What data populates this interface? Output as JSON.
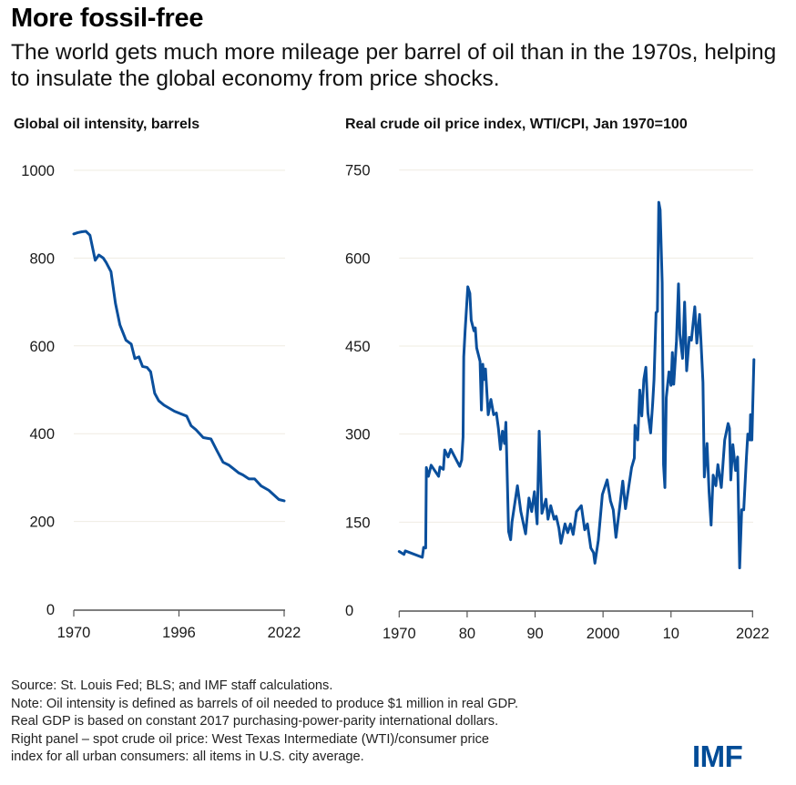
{
  "header": {
    "title": "More fossil-free",
    "subtitle": "The world gets much more mileage per barrel of oil than in the 1970s, helping to insulate the global economy from price shocks."
  },
  "colors": {
    "line": "#0a4f9c",
    "grid": "#efece2",
    "axis": "#555555",
    "logo": "#004c97"
  },
  "chart_data": [
    {
      "type": "line",
      "title": "Global oil intensity, barrels",
      "xlabel": "",
      "ylabel": "",
      "xlim": [
        1970,
        2022
      ],
      "ylim": [
        0,
        1000
      ],
      "x_ticks": [
        1970,
        1996,
        2022
      ],
      "x_tick_labels": [
        "1970",
        "1996",
        "2022"
      ],
      "y_ticks": [
        0,
        200,
        400,
        600,
        800,
        1000
      ],
      "y_tick_labels": [
        "0",
        "200",
        "400",
        "600",
        "800",
        "1000"
      ],
      "grid": true,
      "legend": "none",
      "series": [
        {
          "name": "Global oil intensity",
          "x": [
            1970,
            1971,
            1972,
            1973,
            1974,
            1975.3,
            1976.2,
            1977.3,
            1978,
            1979.2,
            1980.3,
            1981.4,
            1982.9,
            1984.2,
            1985.1,
            1986.1,
            1987,
            1988.1,
            1989,
            1990,
            1991,
            1992.3,
            1994.9,
            1997.9,
            1999,
            2000.2,
            2002,
            2003.9,
            2005.4,
            2006.9,
            2008.4,
            2010.7,
            2011.8,
            2013.3,
            2014.7,
            2016.3,
            2018.2,
            2020.7,
            2022
          ],
          "values": [
            855,
            858,
            860,
            861,
            852,
            795,
            807,
            800,
            790,
            769,
            697,
            648,
            613,
            604,
            571,
            575,
            553,
            551,
            541,
            492,
            475,
            465,
            451,
            440,
            418,
            409,
            391,
            388,
            361,
            335,
            328,
            311,
            306,
            297,
            297,
            281,
            271,
            250,
            247
          ]
        }
      ]
    },
    {
      "type": "line",
      "title": "Real crude oil price index, WTI/CPI, Jan 1970=100",
      "xlabel": "",
      "ylabel": "",
      "xlim": [
        1970,
        2022.2
      ],
      "ylim": [
        0,
        750
      ],
      "x_ticks": [
        1970,
        1980,
        1990,
        2000,
        2010,
        2022
      ],
      "x_tick_labels": [
        "1970",
        "80",
        "90",
        "2000",
        "10",
        "2022"
      ],
      "y_ticks": [
        0,
        150,
        300,
        450,
        600,
        750
      ],
      "y_tick_labels": [
        "0",
        "150",
        "300",
        "450",
        "600",
        "750"
      ],
      "grid": true,
      "legend": "none",
      "series": [
        {
          "name": "Real crude oil price index",
          "x": [
            1970.0,
            1970.7,
            1970.9,
            1973.4,
            1973.6,
            1973.9,
            1974.0,
            1974.3,
            1974.7,
            1975.8,
            1976.0,
            1976.5,
            1976.7,
            1977.2,
            1977.6,
            1978.9,
            1979.2,
            1979.4,
            1979.5,
            1979.7,
            1980.1,
            1980.4,
            1980.6,
            1981.0,
            1981.2,
            1981.4,
            1981.9,
            1982.1,
            1982.3,
            1982.5,
            1982.7,
            1983.1,
            1983.5,
            1983.9,
            1984.3,
            1984.6,
            1984.9,
            1985.2,
            1985.5,
            1985.7,
            1986.1,
            1986.4,
            1986.6,
            1987.4,
            1987.9,
            1988.6,
            1989.1,
            1989.5,
            1989.9,
            1990.3,
            1990.6,
            1991.0,
            1991.6,
            1991.9,
            1992.3,
            1992.8,
            1993.1,
            1993.5,
            1993.8,
            1994.4,
            1994.8,
            1995.2,
            1995.6,
            1996.1,
            1996.8,
            1997.3,
            1997.7,
            1998.2,
            1998.6,
            1998.8,
            1999.3,
            1999.9,
            2000.6,
            2001.1,
            2001.5,
            2001.9,
            2002.4,
            2002.9,
            2003.3,
            2003.7,
            2004.2,
            2004.6,
            2004.7,
            2005.1,
            2005.4,
            2005.7,
            2006.0,
            2006.3,
            2006.6,
            2007.0,
            2007.3,
            2007.5,
            2007.8,
            2008.0,
            2008.2,
            2008.4,
            2008.7,
            2008.9,
            2009.1,
            2009.3,
            2009.7,
            2010.0,
            2010.2,
            2010.4,
            2010.8,
            2011.1,
            2011.3,
            2011.7,
            2012.0,
            2012.3,
            2012.7,
            2013.0,
            2013.5,
            2013.8,
            2014.2,
            2014.4,
            2014.7,
            2014.9,
            2015.3,
            2015.6,
            2015.9,
            2016.2,
            2016.6,
            2016.9,
            2017.4,
            2017.9,
            2018.4,
            2018.6,
            2018.8,
            2019.1,
            2019.5,
            2019.8,
            2020.1,
            2020.4,
            2020.7,
            2021.1,
            2021.3,
            2021.6,
            2021.7,
            2021.9,
            2022.2
          ],
          "values": [
            100,
            95,
            101,
            90,
            107,
            106,
            243,
            228,
            247,
            228,
            244,
            240,
            273,
            261,
            274,
            245,
            256,
            295,
            432,
            476,
            551,
            540,
            494,
            476,
            481,
            447,
            424,
            341,
            419,
            393,
            411,
            333,
            359,
            333,
            336,
            310,
            274,
            305,
            284,
            320,
            134,
            120,
            150,
            212,
            168,
            130,
            191,
            168,
            202,
            147,
            305,
            165,
            189,
            155,
            178,
            155,
            160,
            140,
            114,
            147,
            132,
            147,
            129,
            168,
            178,
            137,
            147,
            106,
            98,
            80,
            119,
            197,
            222,
            186,
            171,
            124,
            171,
            220,
            173,
            204,
            243,
            259,
            315,
            290,
            375,
            331,
            393,
            414,
            336,
            302,
            352,
            393,
            507,
            509,
            695,
            682,
            558,
            248,
            209,
            362,
            406,
            383,
            439,
            385,
            458,
            556,
            470,
            429,
            525,
            408,
            465,
            460,
            517,
            455,
            504,
            460,
            388,
            227,
            284,
            202,
            145,
            230,
            212,
            248,
            209,
            290,
            318,
            310,
            222,
            282,
            238,
            261,
            72,
            171,
            171,
            261,
            300,
            290,
            333,
            290,
            427
          ]
        }
      ]
    }
  ],
  "footer": {
    "lines": [
      "Source: St. Louis Fed; BLS; and IMF staff calculations.",
      "Note: Oil intensity is defined as barrels of oil needed to produce $1 million in real GDP.",
      "Real GDP is based on constant 2017 purchasing-power-parity international dollars.",
      "Right panel – spot crude oil price: West Texas Intermediate (WTI)/consumer price",
      "index for all urban consumers: all items in U.S. city average."
    ]
  },
  "logo": {
    "text": "IMF"
  }
}
